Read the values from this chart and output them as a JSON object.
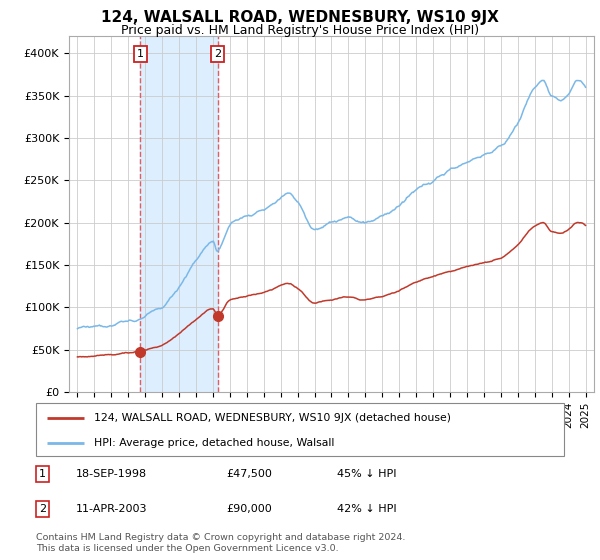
{
  "title": "124, WALSALL ROAD, WEDNESBURY, WS10 9JX",
  "subtitle": "Price paid vs. HM Land Registry's House Price Index (HPI)",
  "ylim": [
    0,
    420000
  ],
  "yticks": [
    0,
    50000,
    100000,
    150000,
    200000,
    250000,
    300000,
    350000,
    400000
  ],
  "ytick_labels": [
    "£0",
    "£50K",
    "£100K",
    "£150K",
    "£200K",
    "£250K",
    "£300K",
    "£350K",
    "£400K"
  ],
  "sale1": {
    "date_num": 1998.72,
    "price": 47500,
    "label": "1",
    "pct": "45% ↓ HPI",
    "date_str": "18-SEP-1998",
    "price_str": "£47,500"
  },
  "sale2": {
    "date_num": 2003.27,
    "price": 90000,
    "label": "2",
    "pct": "42% ↓ HPI",
    "date_str": "11-APR-2003",
    "price_str": "£90,000"
  },
  "hpi_color": "#7ab8e8",
  "price_color": "#c0392b",
  "vline_color": "#e05050",
  "shade_color": "#ddeeff",
  "background_color": "#ffffff",
  "grid_color": "#cccccc",
  "legend_label_red": "124, WALSALL ROAD, WEDNESBURY, WS10 9JX (detached house)",
  "legend_label_blue": "HPI: Average price, detached house, Walsall",
  "footer": "Contains HM Land Registry data © Crown copyright and database right 2024.\nThis data is licensed under the Open Government Licence v3.0.",
  "title_fontsize": 11,
  "subtitle_fontsize": 9
}
